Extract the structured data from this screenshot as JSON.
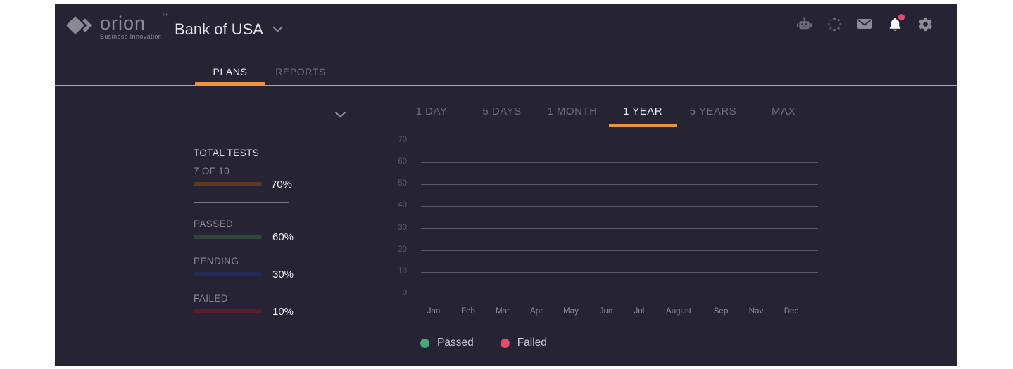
{
  "colors": {
    "accent": "#ea9440",
    "background": "#262334",
    "notification": "#e8486a",
    "total_bar": "#613a1e",
    "passed_bar": "#2d4935",
    "pending_bar": "#1f2c55",
    "failed_bar": "#5a1c2b"
  },
  "header": {
    "logo": {
      "name": "orion",
      "trademark": "™",
      "tagline": "Business Innovation"
    },
    "client": {
      "name": "Bank of USA"
    },
    "icons": [
      {
        "name": "robot-icon"
      },
      {
        "name": "loader-icon"
      },
      {
        "name": "mail-icon"
      },
      {
        "name": "bell-icon",
        "badge": true
      },
      {
        "name": "gear-icon"
      }
    ],
    "tabs": [
      {
        "label": "PLANS",
        "active": true
      },
      {
        "label": "REPORTS",
        "active": false
      }
    ]
  },
  "stats": {
    "total": {
      "label": "TOTAL TESTS",
      "count": "7 OF 10",
      "percent": "70%",
      "color": "#613a1e"
    },
    "items": [
      {
        "label": "PASSED",
        "percent": "60%",
        "color": "#2d4935"
      },
      {
        "label": "PENDING",
        "percent": "30%",
        "color": "#1f2c55"
      },
      {
        "label": "FAILED",
        "percent": "10%",
        "color": "#5a1c2b"
      }
    ]
  },
  "range_tabs": [
    {
      "label": "1 DAY",
      "active": false
    },
    {
      "label": "5 DAYS",
      "active": false
    },
    {
      "label": "1 MONTH",
      "active": false
    },
    {
      "label": "1 YEAR",
      "active": true
    },
    {
      "label": "5 YEARS",
      "active": false
    },
    {
      "label": "MAX",
      "active": false
    }
  ],
  "chart_data": {
    "type": "line",
    "title": "",
    "xlabel": "",
    "ylabel": "",
    "x_categories": [
      "Jan",
      "Feb",
      "Mar",
      "Apr",
      "May",
      "Jun",
      "Jul",
      "August",
      "Sep",
      "Nav",
      "Dec"
    ],
    "y_ticks": [
      70,
      60,
      50,
      40,
      30,
      20,
      10,
      0
    ],
    "ylim": [
      0,
      70
    ],
    "grid": "horizontal",
    "legend_position": "bottom",
    "series": [
      {
        "name": "Passed",
        "color": "#4aa876",
        "values": []
      },
      {
        "name": "Failed",
        "color": "#e8486a",
        "values": []
      }
    ]
  }
}
